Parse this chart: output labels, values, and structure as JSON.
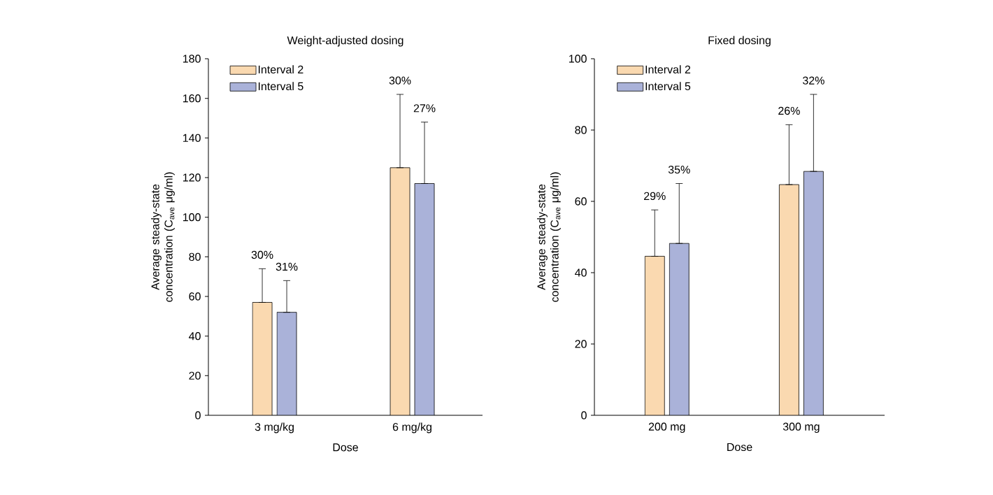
{
  "chart_data": [
    {
      "type": "bar",
      "title": "Weight-adjusted dosing",
      "xlabel": "Dose",
      "ylabel": "Average steady-state concentration (C$_{ave}$ μg/ml)",
      "categories": [
        "3 mg/kg",
        "6 mg/kg"
      ],
      "series": [
        {
          "name": "Interval 2",
          "color": "#fad9b0",
          "values": [
            57,
            125
          ],
          "errors": [
            [
              57,
              74
            ],
            [
              125,
              162
            ]
          ]
        },
        {
          "name": "Interval 5",
          "color": "#aab2d9",
          "values": [
            52,
            117
          ],
          "errors": [
            [
              52,
              68
            ],
            [
              117,
              148
            ]
          ]
        }
      ],
      "annotations": [
        "30%",
        "31%",
        "30%",
        "27%"
      ],
      "ylim": [
        0,
        180
      ],
      "yticks": [
        0,
        20,
        40,
        60,
        80,
        100,
        120,
        140,
        160,
        180
      ],
      "legend": "top left"
    },
    {
      "type": "bar",
      "title": "Fixed dosing",
      "xlabel": "Dose",
      "ylabel": "Average steady-state concentration (C$_{ave}$ μg/ml)",
      "categories": [
        "200 mg",
        "300 mg"
      ],
      "series": [
        {
          "name": "Interval 2",
          "color": "#fad9b0",
          "values": [
            44.6,
            64.7
          ],
          "errors": [
            [
              44.6,
              57.6
            ],
            [
              64.7,
              81.5
            ]
          ]
        },
        {
          "name": "Interval 5",
          "color": "#aab2d9",
          "values": [
            48.2,
            68.4
          ],
          "errors": [
            [
              48.2,
              65
            ],
            [
              68.4,
              90
            ]
          ]
        }
      ],
      "annotations": [
        "29%",
        "35%",
        "26%",
        "32%"
      ],
      "ylim": [
        0,
        100
      ],
      "yticks": [
        0,
        20,
        40,
        60,
        80,
        100
      ],
      "legend": "top left"
    }
  ]
}
